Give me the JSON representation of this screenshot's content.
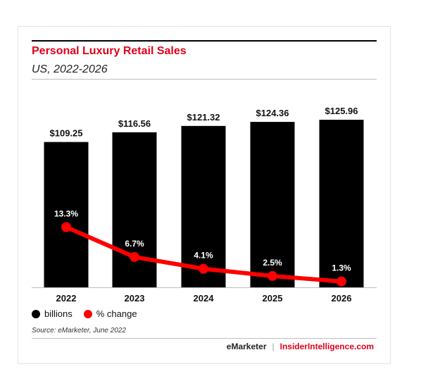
{
  "header": {
    "title": "Personal Luxury Retail Sales",
    "subtitle": "US, 2022-2026"
  },
  "legend": {
    "bar_label": "billions",
    "line_label": "% change"
  },
  "source": "Source: eMarketer, June 2022",
  "brand": {
    "left": "eMarketer",
    "separator": "|",
    "right": "InsiderIntelligence.com"
  },
  "colors": {
    "title": "#e0001b",
    "bars": "#000000",
    "line": "#ff0000",
    "brand_accent": "#e0001b"
  },
  "chart_data": {
    "type": "bar",
    "categories": [
      "2022",
      "2023",
      "2024",
      "2025",
      "2026"
    ],
    "series": [
      {
        "name": "billions",
        "type": "bar",
        "values": [
          109.25,
          116.56,
          121.32,
          124.36,
          125.96
        ],
        "labels": [
          "$109.25",
          "$116.56",
          "$121.32",
          "$124.36",
          "$125.96"
        ]
      },
      {
        "name": "% change",
        "type": "line",
        "values": [
          13.3,
          6.7,
          4.1,
          2.5,
          1.3
        ],
        "labels": [
          "13.3%",
          "6.7%",
          "4.1%",
          "2.5%",
          "1.3%"
        ]
      }
    ],
    "ylim_bars": [
      0,
      126
    ],
    "ylim_line": [
      0,
      14
    ],
    "legend_position": "bottom-left",
    "grid": false
  }
}
